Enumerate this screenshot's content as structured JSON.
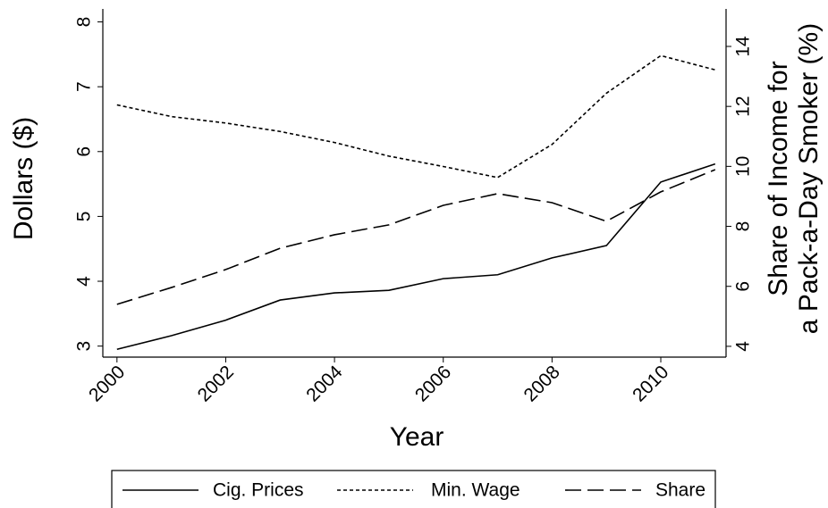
{
  "chart_data": {
    "type": "line",
    "x": [
      2000,
      2001,
      2002,
      2003,
      2004,
      2005,
      2006,
      2007,
      2008,
      2009,
      2010,
      2011
    ],
    "xlabel": "Year",
    "ylabel": "Dollars ($)",
    "y2label": [
      "Share of Income for",
      "a Pack-a-Day Smoker (%)"
    ],
    "xlim": [
      1999.74,
      2011.2
    ],
    "xticks": [
      2000,
      2002,
      2004,
      2006,
      2008,
      2010
    ],
    "ylim": [
      2.83,
      8.2
    ],
    "yticks": [
      3,
      4,
      5,
      6,
      7,
      8
    ],
    "y2lim": [
      3.64,
      15.25
    ],
    "y2ticks": [
      4,
      6,
      8,
      10,
      12,
      14
    ],
    "legend": "bottom",
    "series": [
      {
        "name": "Cig. Prices",
        "color": "#000000",
        "dash": "solid",
        "values": [
          2.95,
          3.16,
          3.4,
          3.71,
          3.82,
          3.86,
          4.04,
          4.1,
          4.36,
          4.55,
          5.53,
          5.81
        ]
      },
      {
        "name": "Min. Wage",
        "color": "#000000",
        "dash": "dotted",
        "values": [
          6.72,
          6.54,
          6.44,
          6.31,
          6.14,
          5.93,
          5.77,
          5.6,
          6.11,
          6.9,
          7.48,
          7.26
        ]
      },
      {
        "name": "Share",
        "color": "#000000",
        "dash": "dashed",
        "axis": "y2",
        "values": [
          5.4,
          5.96,
          6.56,
          7.27,
          7.72,
          8.05,
          8.7,
          9.09,
          8.79,
          8.17,
          9.15,
          9.89
        ]
      }
    ]
  }
}
